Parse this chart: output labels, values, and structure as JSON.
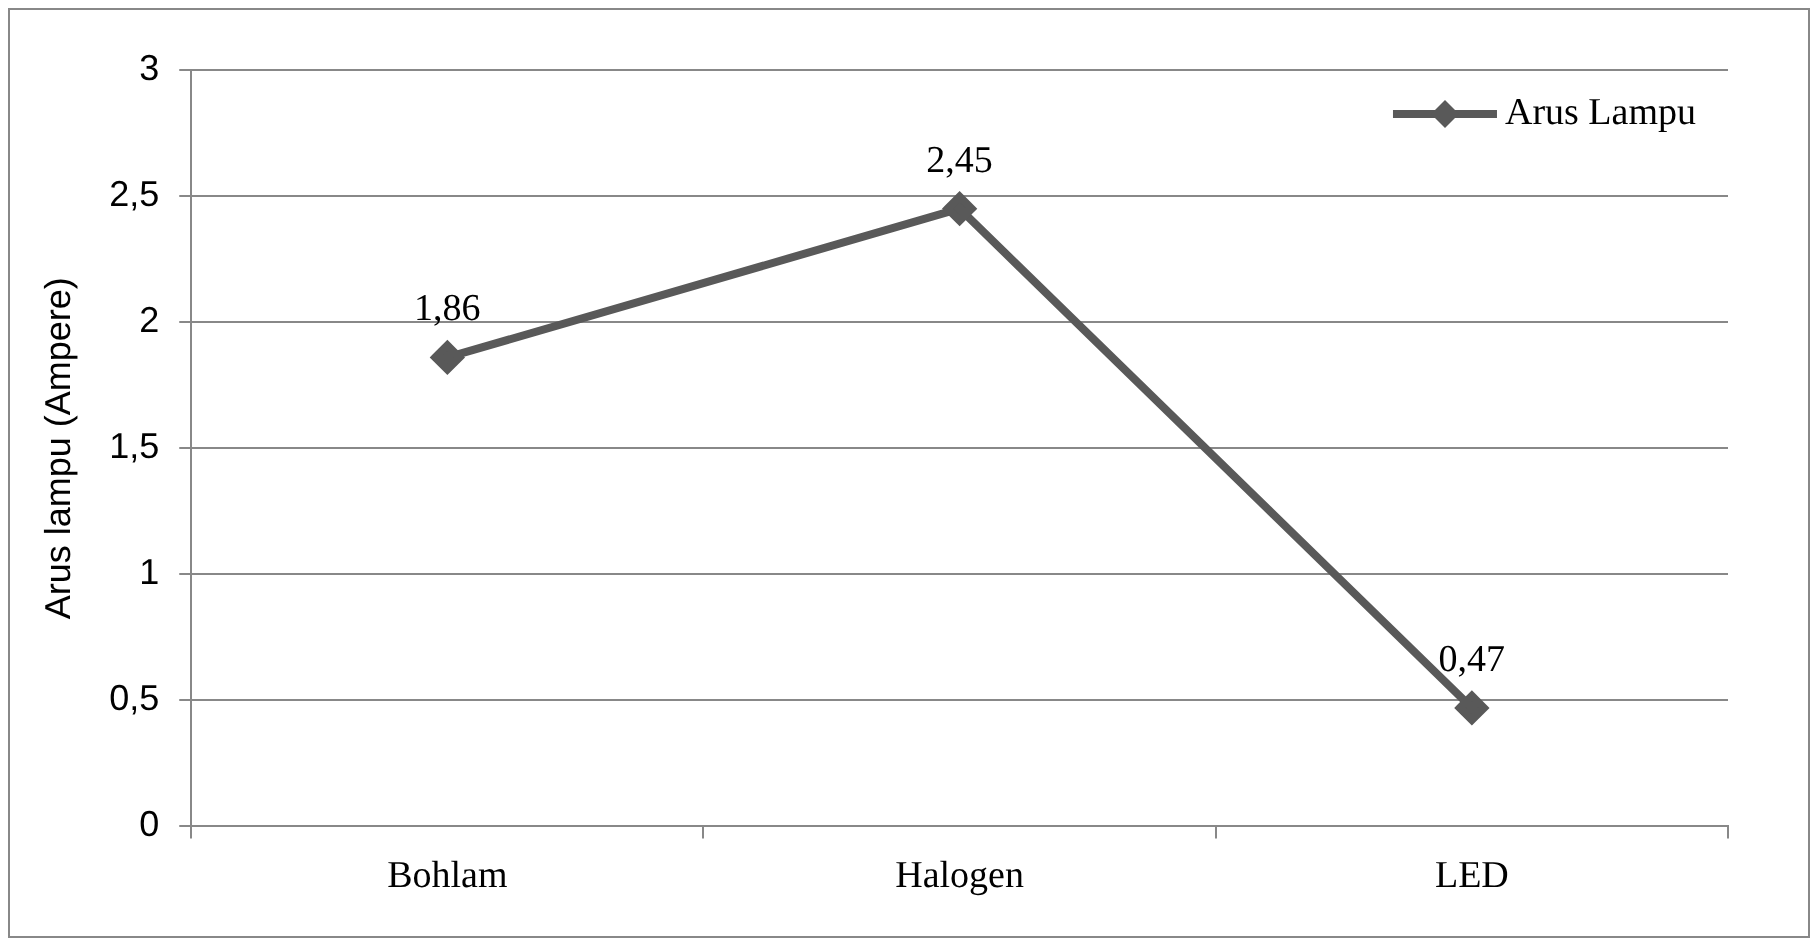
{
  "chart_data": {
    "type": "line",
    "ylabel": "Arus lampu (Ampere)",
    "categories": [
      "Bohlam",
      "Halogen",
      "LED"
    ],
    "series": [
      {
        "name": "Arus Lampu",
        "color": "#595959",
        "values": [
          1.86,
          2.45,
          0.47
        ],
        "value_labels": [
          "1,86",
          "2,45",
          "0,47"
        ]
      }
    ],
    "ylim": [
      0,
      3
    ],
    "yticks": [
      0,
      {
        "value": 0.5,
        "label": "0,5"
      },
      1,
      {
        "value": 1.5,
        "label": "1,5"
      },
      2,
      {
        "value": 2.5,
        "label": "2,5"
      },
      3
    ],
    "grid": "y",
    "legend": "top right",
    "marker": "diamond",
    "line_style": "solid"
  }
}
